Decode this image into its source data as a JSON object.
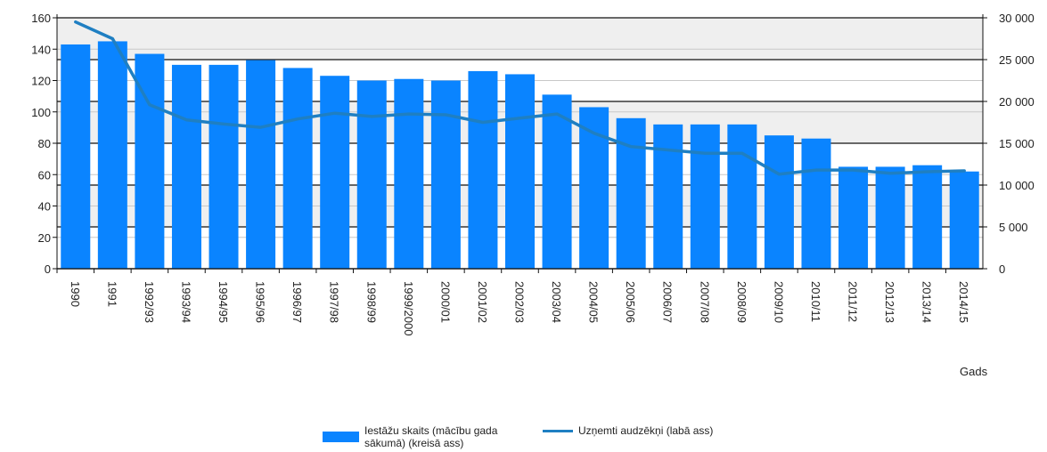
{
  "chart_data": {
    "type": "bar",
    "xlabel": "Gads",
    "categories": [
      "1990",
      "1991",
      "1992/93",
      "1993/94",
      "1994/95",
      "1995/96",
      "1996/97",
      "1997/98",
      "1998/99",
      "1999/2000",
      "2000/01",
      "2001/02",
      "2002/03",
      "2003/04",
      "2004/05",
      "2005/06",
      "2006/07",
      "2007/08",
      "2008/09",
      "2009/10",
      "2010/11",
      "2011/12",
      "2012/13",
      "2013/14",
      "2014/15"
    ],
    "series": [
      {
        "name": "Iestāžu skaits (mācību gada sākumā) (kreisā ass)",
        "type": "bar",
        "axis": "left",
        "color": "#0a84ff",
        "values": [
          143,
          145,
          137,
          130,
          130,
          133,
          128,
          123,
          120,
          121,
          120,
          126,
          124,
          111,
          103,
          96,
          92,
          92,
          92,
          85,
          83,
          65,
          65,
          66,
          62
        ]
      },
      {
        "name": "Uzņemti audzēkņi (labā ass)",
        "type": "line",
        "axis": "right",
        "color": "#1f7fc2",
        "values": [
          29500,
          27500,
          19600,
          17800,
          17300,
          16900,
          17900,
          18600,
          18200,
          18500,
          18400,
          17500,
          18000,
          18500,
          16200,
          14600,
          14200,
          13800,
          13800,
          11300,
          11800,
          11800,
          11400,
          11600,
          11700
        ]
      }
    ],
    "y_left": {
      "ylim": [
        0,
        160
      ],
      "ticks": [
        "0",
        "20",
        "40",
        "60",
        "80",
        "100",
        "120",
        "140",
        "160"
      ]
    },
    "y_right": {
      "ylim": [
        0,
        30000
      ],
      "ticks": [
        "0",
        "5 000",
        "10 000",
        "15 000",
        "20 000",
        "25 000",
        "30 000"
      ]
    },
    "grid": true,
    "legend_position": "bottom"
  },
  "legend": {
    "bar_label": "Iestāžu skaits (mācību gada sākumā) (kreisā ass)",
    "line_label": "Uzņemti audzēkņi (labā ass)"
  }
}
